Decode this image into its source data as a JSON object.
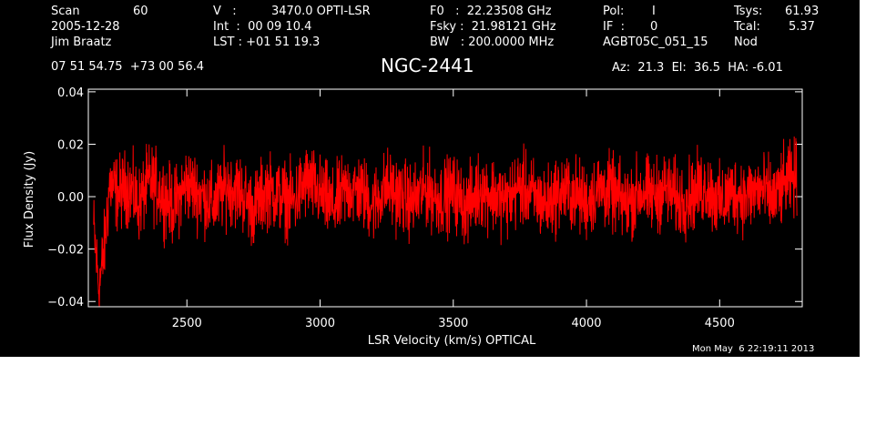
{
  "header": {
    "col1": [
      "Scan",
      "2005-12-28",
      "Jim Braatz"
    ],
    "scan_number": "60",
    "col2": [
      "V   :",
      "Int  :  00 09 10.4",
      "LST : +01 51 19.3"
    ],
    "velocity": "3470.0 OPTI-LSR",
    "col3": [
      "F0   :  22.23508 GHz",
      "Fsky :  21.98121 GHz",
      "BW   : 200.0000 MHz"
    ],
    "col4": [
      "Pol:",
      "IF  :",
      "AGBT05C_051_15"
    ],
    "pol_value": "I",
    "if_value": "0",
    "col5": [
      "Tsys:",
      "Tcal:",
      "Nod"
    ],
    "tsys_value": "61.93",
    "tcal_value": "5.37",
    "coords": "07 51 54.75  +73 00 56.4",
    "source": "NGC-2441",
    "az_el_ha": "Az:  21.3  El:  36.5  HA: -6.01",
    "timestamp": "Mon May  6 22:19:11 2013"
  },
  "colors": {
    "background": "#000000",
    "axes": "#ffffff",
    "trace": "#ff0000",
    "page": "#ffffff"
  },
  "chart_data": {
    "type": "line",
    "xlabel": "LSR Velocity (km/s) OPTICAL",
    "ylabel": "Flux Density (Jy)",
    "xlim": [
      2130,
      4810
    ],
    "ylim": [
      -0.042,
      0.041
    ],
    "x_ticks": [
      2500,
      3000,
      3500,
      4000,
      4500
    ],
    "x_tick_labels": [
      "2500",
      "3000",
      "3500",
      "4000",
      "4500"
    ],
    "y_ticks": [
      -0.04,
      -0.02,
      0.0,
      0.02,
      0.04
    ],
    "y_tick_labels": [
      "−0.04",
      "−0.02",
      "0.00",
      "0.02",
      "0.04"
    ],
    "grid": false,
    "series": [
      {
        "x": [
          2150,
          2170,
          2190,
          2210,
          2240,
          2280,
          2320,
          2360,
          2400,
          2450,
          2500,
          2550,
          2600,
          2650,
          2700,
          2750,
          2800,
          2850,
          2900,
          2950,
          3000,
          3050,
          3100,
          3150,
          3200,
          3250,
          3300,
          3350,
          3400,
          3450,
          3500,
          3550,
          3600,
          3650,
          3700,
          3750,
          3800,
          3850,
          3900,
          3950,
          4000,
          4050,
          4100,
          4150,
          4200,
          4250,
          4300,
          4350,
          4400,
          4450,
          4500,
          4550,
          4600,
          4650,
          4700,
          4750,
          4790
        ],
        "y": [
          -0.012,
          -0.035,
          -0.02,
          0.005,
          0.001,
          0.004,
          -0.003,
          0.006,
          0.002,
          -0.004,
          0.005,
          0.001,
          -0.003,
          0.004,
          0.002,
          -0.005,
          0.003,
          0.0,
          -0.002,
          0.006,
          0.001,
          -0.004,
          0.003,
          0.002,
          -0.003,
          0.004,
          0.0,
          -0.002,
          0.003,
          -0.001,
          0.002,
          -0.004,
          0.003,
          0.001,
          -0.002,
          0.004,
          0.0,
          -0.003,
          0.002,
          0.001,
          -0.002,
          0.003,
          0.001,
          -0.003,
          0.002,
          0.0,
          0.003,
          -0.002,
          0.001,
          0.004,
          -0.003,
          0.002,
          0.0,
          0.003,
          -0.001,
          0.005,
          0.008
        ],
        "noise_amplitude": 0.01
      }
    ]
  }
}
